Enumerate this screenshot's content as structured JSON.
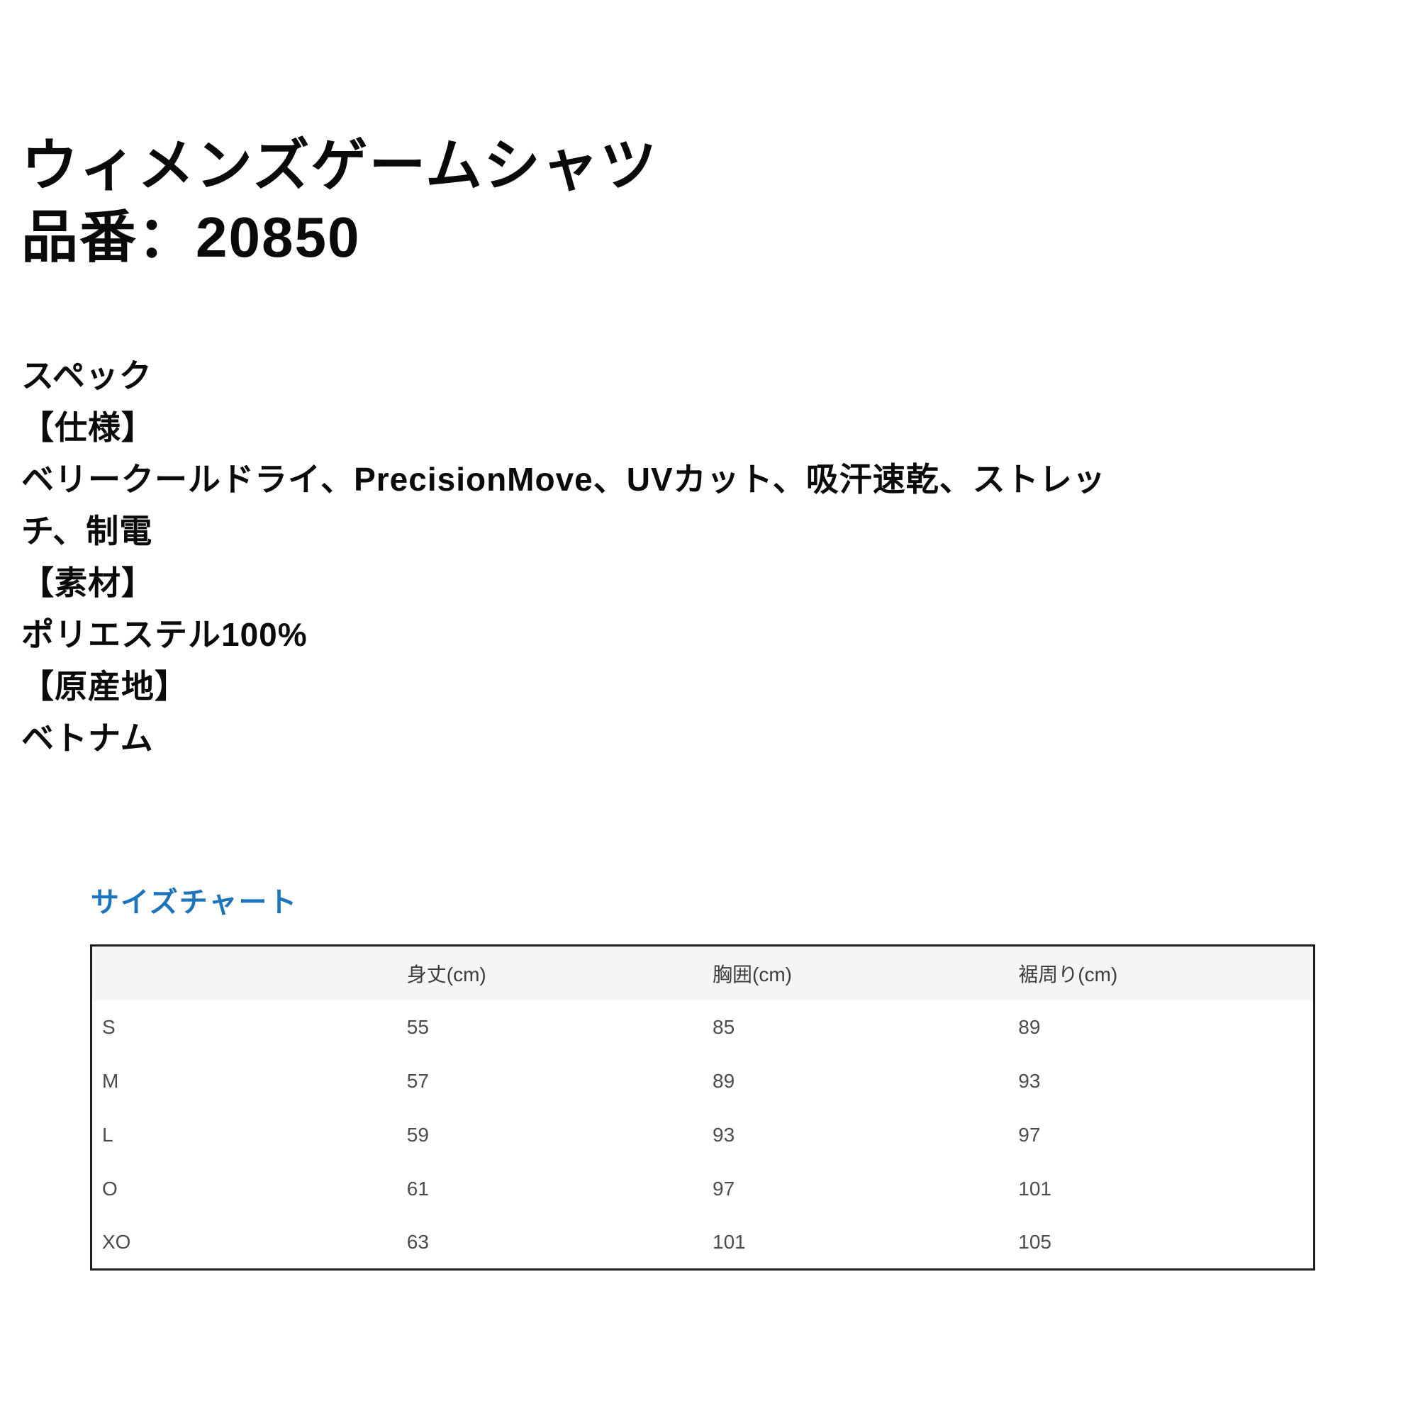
{
  "product": {
    "name": "ウィメンズゲームシャツ",
    "number_line": "品番：20850"
  },
  "spec": {
    "lines": [
      "スペック",
      "【仕様】",
      "ベリークールドライ、PrecisionMove、UVカット、吸汗速乾、ストレッ",
      "チ、制電",
      "【素材】",
      "ポリエステル100%",
      "【原産地】",
      "ベトナム"
    ]
  },
  "size_chart": {
    "heading": "サイズチャート",
    "columns": [
      "",
      "身丈(cm)",
      "胸囲(cm)",
      "裾周り(cm)"
    ],
    "rows": [
      {
        "size": "S",
        "values": [
          "55",
          "85",
          "89"
        ]
      },
      {
        "size": "M",
        "values": [
          "57",
          "89",
          "93"
        ]
      },
      {
        "size": "L",
        "values": [
          "59",
          "93",
          "97"
        ]
      },
      {
        "size": "O",
        "values": [
          "61",
          "97",
          "101"
        ]
      },
      {
        "size": "XO",
        "values": [
          "63",
          "101",
          "105"
        ]
      }
    ]
  },
  "colors": {
    "heading_blue": "#1b74bc",
    "table_border": "#1f1f1f",
    "table_header_bg": "#f5f5f5"
  }
}
